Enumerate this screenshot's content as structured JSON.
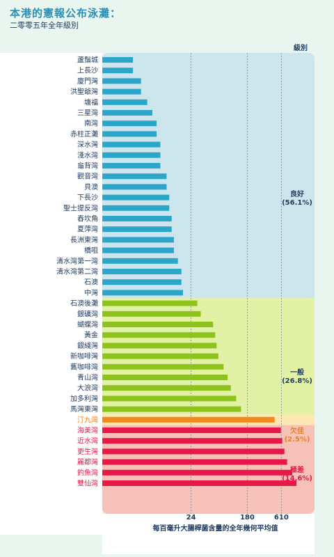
{
  "title": "本港的憲報公布泳灘：",
  "subtitle": "二零零五年全年級別",
  "chart_data": {
    "type": "bar",
    "orientation": "horizontal",
    "scale": "log",
    "x_ticks": [
      24,
      180,
      610
    ],
    "xlabel": "每百毫升大腸桿菌含量的全年幾何平均值",
    "legend_title": "級別",
    "categories": [
      "蘆鬚城",
      "上長沙",
      "廈門灣",
      "洪聖爺灣",
      "塘福",
      "三星灣",
      "南灣",
      "赤柱正灘",
      "深水灣",
      "淺水灣",
      "龜背灣",
      "觀音灣",
      "貝澳",
      "下長沙",
      "聖士提反灣",
      "舂坎角",
      "夏萍灣",
      "長洲東灣",
      "橋咀",
      "清水灣第一灣",
      "清水灣第二灣",
      "石澳",
      "中灣",
      "石澳後灘",
      "銀礦灣",
      "蝴蝶灣",
      "黃金",
      "銀綫灣",
      "新咖啡灣",
      "舊咖啡灣",
      "青山灣",
      "大浪灣",
      "加多利灣",
      "馬灣東灣",
      "汀九灣",
      "海美灣",
      "近水灣",
      "更生灣",
      "麗都灣",
      "釣魚灣",
      "雙仙灣"
    ],
    "values": [
      3,
      3,
      4,
      4,
      5,
      6,
      7,
      7,
      8,
      8,
      8,
      10,
      10,
      11,
      11,
      12,
      12,
      13,
      13,
      15,
      17,
      17,
      18,
      30,
      34,
      53,
      57,
      60,
      64,
      77,
      89,
      100,
      121,
      144,
      480,
      600,
      630,
      680,
      750,
      900,
      1050
    ],
    "grade_of_bar": [
      "good",
      "good",
      "good",
      "good",
      "good",
      "good",
      "good",
      "good",
      "good",
      "good",
      "good",
      "good",
      "good",
      "good",
      "good",
      "good",
      "good",
      "good",
      "good",
      "good",
      "good",
      "good",
      "good",
      "fair",
      "fair",
      "fair",
      "fair",
      "fair",
      "fair",
      "fair",
      "fair",
      "fair",
      "fair",
      "fair",
      "poor",
      "very_poor",
      "very_poor",
      "very_poor",
      "very_poor",
      "very_poor",
      "very_poor"
    ],
    "grades": [
      {
        "id": "good",
        "label": "良好",
        "pct": "(56.1%)",
        "bar_color": "#2ba6c8",
        "band_color": "#cde5ec",
        "text_color": "#1e3a5f"
      },
      {
        "id": "fair",
        "label": "一般",
        "pct": "(26.8%)",
        "bar_color": "#8ec31e",
        "band_color": "#e3f1a7",
        "text_color": "#1e3a5f"
      },
      {
        "id": "poor",
        "label": "欠佳",
        "pct": "(2.5%)",
        "bar_color": "#f08a1a",
        "band_color": "#fde7b2",
        "text_color": "#ef7f1a"
      },
      {
        "id": "very_poor",
        "label": "極差",
        "pct": "(14.6%)",
        "bar_color": "#e8174a",
        "band_color": "#f6c1b6",
        "text_color": "#e0194a"
      }
    ]
  }
}
